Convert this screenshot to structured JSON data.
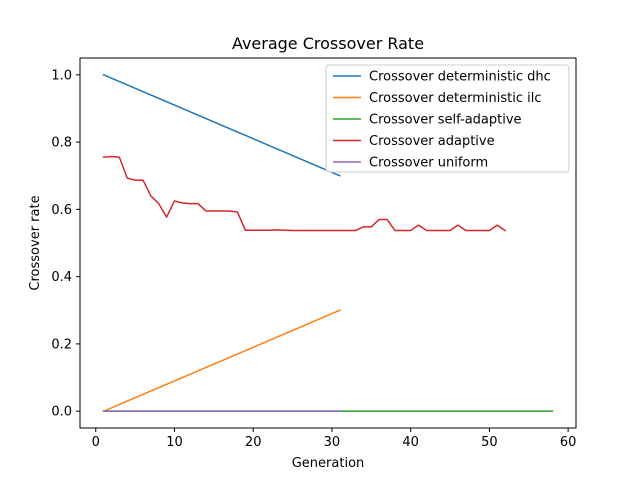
{
  "chart_data": {
    "type": "line",
    "title": "Average Crossover Rate",
    "xlabel": "Generation",
    "ylabel": "Crossover rate",
    "xlim": [
      -2,
      61
    ],
    "ylim": [
      -0.05,
      1.05
    ],
    "xticks": [
      0,
      10,
      20,
      30,
      40,
      50,
      60
    ],
    "yticks": [
      0.0,
      0.2,
      0.4,
      0.6,
      0.8,
      1.0
    ],
    "xtick_labels": [
      "0",
      "10",
      "20",
      "30",
      "40",
      "50",
      "60"
    ],
    "ytick_labels": [
      "0.0",
      "0.2",
      "0.4",
      "0.6",
      "0.8",
      "1.0"
    ],
    "grid": false,
    "legend_position": "upper right",
    "series": [
      {
        "name": "Crossover deterministic dhc",
        "color": "#1f77b4",
        "x": [
          1,
          31
        ],
        "y": [
          1.0,
          0.7
        ]
      },
      {
        "name": "Crossover deterministic ilc",
        "color": "#ff7f0e",
        "x": [
          1,
          31
        ],
        "y": [
          0.0,
          0.3
        ]
      },
      {
        "name": "Crossover self-adaptive",
        "color": "#2ca02c",
        "x": [
          1,
          58
        ],
        "y": [
          0.0,
          0.0
        ]
      },
      {
        "name": "Crossover adaptive",
        "color": "#d62728",
        "x": [
          1,
          2,
          3,
          4,
          5,
          6,
          7,
          8,
          9,
          10,
          11,
          12,
          13,
          14,
          15,
          16,
          17,
          18,
          19,
          20,
          21,
          22,
          23,
          24,
          25,
          26,
          27,
          28,
          29,
          30,
          31,
          32,
          33,
          34,
          35,
          36,
          37,
          38,
          39,
          40,
          41,
          42,
          43,
          44,
          45,
          46,
          47,
          48,
          49,
          50,
          51,
          52
        ],
        "y": [
          0.755,
          0.757,
          0.755,
          0.693,
          0.687,
          0.687,
          0.64,
          0.617,
          0.577,
          0.625,
          0.619,
          0.617,
          0.617,
          0.595,
          0.595,
          0.595,
          0.595,
          0.592,
          0.538,
          0.538,
          0.538,
          0.538,
          0.539,
          0.538,
          0.537,
          0.537,
          0.537,
          0.537,
          0.537,
          0.537,
          0.537,
          0.537,
          0.537,
          0.548,
          0.548,
          0.57,
          0.57,
          0.537,
          0.537,
          0.537,
          0.553,
          0.537,
          0.537,
          0.537,
          0.537,
          0.553,
          0.537,
          0.537,
          0.537,
          0.537,
          0.553,
          0.537
        ]
      },
      {
        "name": "Crossover uniform",
        "color": "#9467bd",
        "x": [
          1,
          31
        ],
        "y": [
          0.0,
          0.0
        ]
      }
    ]
  }
}
